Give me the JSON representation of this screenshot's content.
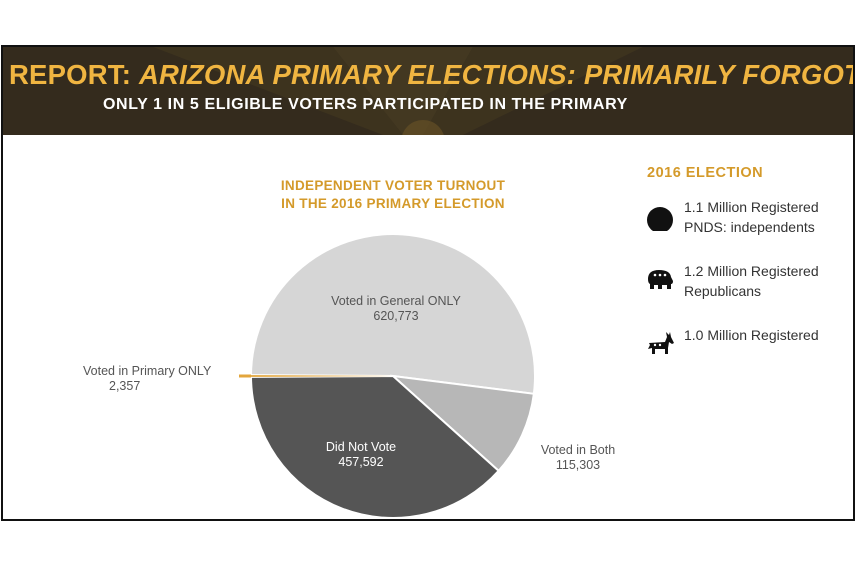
{
  "header": {
    "title_lead": "REPORT:",
    "title_rest": "ARIZONA PRIMARY ELECTIONS: PRIMARILY FORGOTTEN",
    "subtitle": "ONLY 1 IN 5 ELIGIBLE VOTERS PARTICIPATED IN THE PRIMARY"
  },
  "chart_data": {
    "type": "pie",
    "title_line1": "INDEPENDENT VOTER TURNOUT",
    "title_line2": "IN THE 2016 PRIMARY ELECTION",
    "slices": [
      {
        "name": "Voted in General ONLY",
        "value": 620773,
        "value_label": "620,773",
        "color": "#d6d6d6"
      },
      {
        "name": "Voted in Both",
        "value": 115303,
        "value_label": "115,303",
        "color": "#b7b7b7"
      },
      {
        "name": "Did Not Vote",
        "value": 457592,
        "value_label": "457,592",
        "color": "#555555"
      },
      {
        "name": "Voted in Primary ONLY",
        "value": 2357,
        "value_label": "2,357",
        "color": "#e3a63c"
      }
    ]
  },
  "legend": {
    "title": "2016 ELECTION",
    "items": [
      {
        "icon": "circle-icon",
        "line1": "1.1 Million Registered",
        "line2": "PNDS: independents"
      },
      {
        "icon": "elephant-icon",
        "line1": "1.2 Million Registered",
        "line2": "Republicans"
      },
      {
        "icon": "donkey-icon",
        "line1": "1.0 Million Registered",
        "line2": ""
      }
    ]
  },
  "colors": {
    "banner_title": "#f0b541",
    "accent": "#d49a2a",
    "banner_bg": "#2c2a22"
  }
}
